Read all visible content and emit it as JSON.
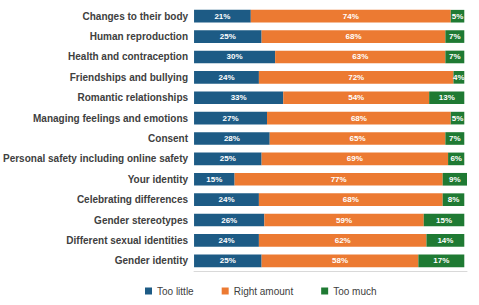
{
  "chart_data": {
    "type": "bar",
    "orientation": "horizontal",
    "stacked": true,
    "data_labels": true,
    "tick_labels": "y",
    "grid": false,
    "legend": "bottom",
    "categories": [
      "Changes to their body",
      "Human reproduction",
      "Health and contraception",
      "Friendships and bullying",
      "Romantic relationships",
      "Managing feelings and emotions",
      "Consent",
      "Personal safety including online safety",
      "Your identity",
      "Celebrating differences",
      "Gender stereotypes",
      "Different sexual identities",
      "Gender identity"
    ],
    "xlim": [
      0,
      101
    ],
    "xticks": [],
    "series": [
      {
        "name": "Too little",
        "color": "#1d5b85",
        "values": [
          21,
          25,
          30,
          24,
          33,
          27,
          28,
          25,
          15,
          24,
          26,
          24,
          25
        ],
        "value_labels": [
          "21%",
          "25%",
          "30%",
          "24%",
          "33%",
          "27%",
          "28%",
          "25%",
          "15%",
          "24%",
          "26%",
          "24%",
          "25%"
        ]
      },
      {
        "name": "Right amount",
        "color": "#ec7a32",
        "values": [
          74,
          68,
          63,
          72,
          54,
          68,
          65,
          69,
          77,
          68,
          59,
          62,
          58
        ],
        "value_labels": [
          "74%",
          "68%",
          "63%",
          "72%",
          "54%",
          "68%",
          "65%",
          "69%",
          "77%",
          "68%",
          "59%",
          "62%",
          "58%"
        ]
      },
      {
        "name": "Too much",
        "color": "#1f7a33",
        "values": [
          5,
          7,
          7,
          4,
          13,
          5,
          7,
          6,
          9,
          8,
          15,
          14,
          17
        ],
        "value_labels": [
          "5%",
          "7%",
          "7%",
          "4%",
          "13%",
          "5%",
          "7%",
          "6%",
          "9%",
          "8%",
          "15%",
          "14%",
          "17%"
        ]
      }
    ]
  }
}
